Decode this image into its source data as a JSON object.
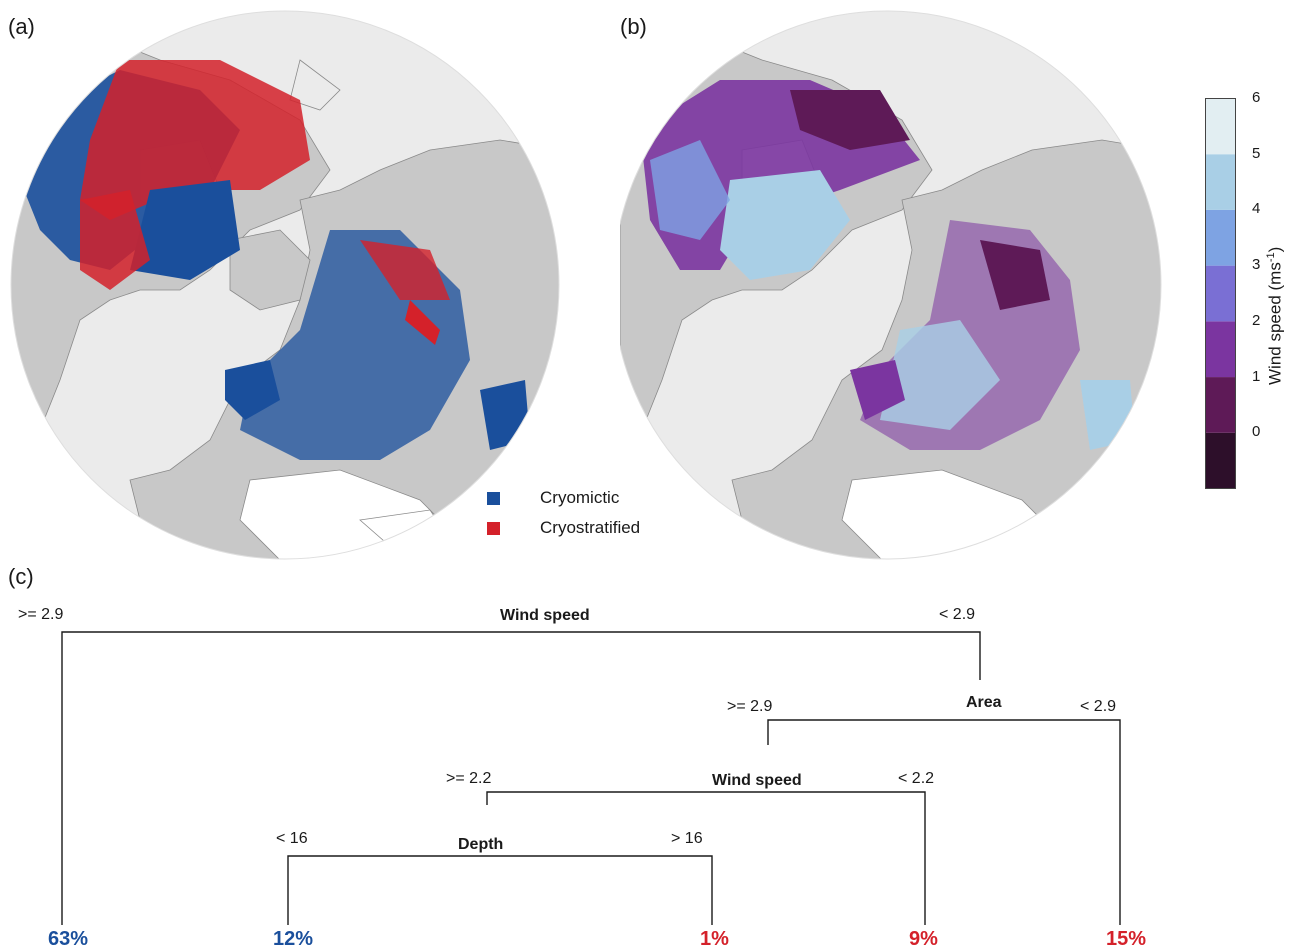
{
  "panels": {
    "a": "(a)",
    "b": "(b)",
    "c": "(c)"
  },
  "map_a": {
    "legend": [
      {
        "label": "Cryomictic",
        "color": "#1a4f9c"
      },
      {
        "label": "Cryostratified",
        "color": "#d4212a"
      }
    ]
  },
  "map_b": {
    "colorbar": {
      "title": "Wind speed (ms",
      "title_sup": "-1",
      "title_close": ")",
      "ticks": [
        "0",
        "1",
        "2",
        "3",
        "4",
        "5",
        "6"
      ],
      "colors": [
        "#2d0f2a",
        "#5e1a57",
        "#7b35a0",
        "#7a6fd4",
        "#7ea3e3",
        "#a9cfe6",
        "#e2eef2"
      ]
    }
  },
  "tree": {
    "root": {
      "label": "Wind speed",
      "left": ">= 2.9",
      "right": "< 2.9"
    },
    "area": {
      "label": "Area",
      "left": ">= 2.9",
      "right": "< 2.9"
    },
    "wind2": {
      "label": "Wind speed",
      "left": ">= 2.2",
      "right": "< 2.2"
    },
    "depth": {
      "label": "Depth",
      "left": "< 16",
      "right": "> 16"
    },
    "leaves": [
      {
        "value": "63%",
        "color": "#1a4f9c"
      },
      {
        "value": "12%",
        "color": "#1a4f9c"
      },
      {
        "value": "1%",
        "color": "#d4212a"
      },
      {
        "value": "9%",
        "color": "#d4212a"
      },
      {
        "value": "15%",
        "color": "#d4212a"
      }
    ]
  }
}
